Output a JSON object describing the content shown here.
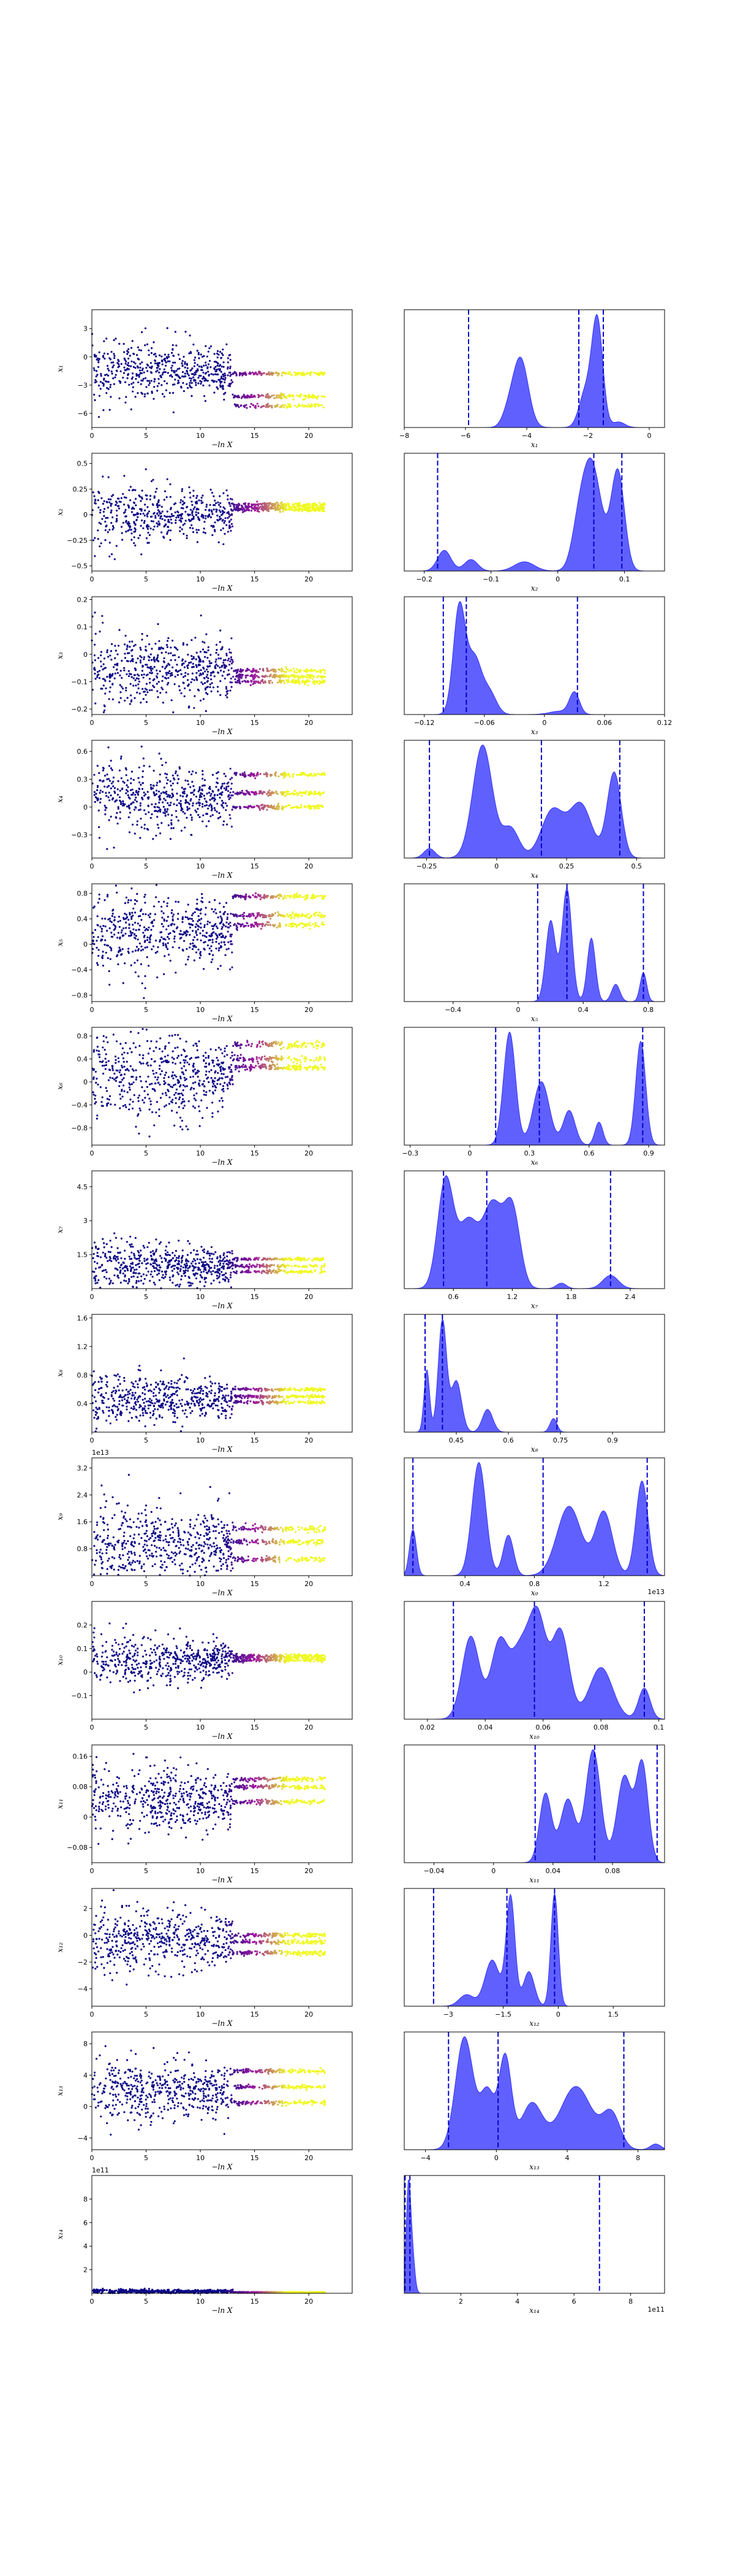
{
  "figure": {
    "colors": {
      "trace_low": "#0d0887",
      "trace_mid": "#9c179e",
      "trace_high": "#f0f921",
      "density_fill": "#3333ff",
      "quantile_line": "#0000cc"
    },
    "quantiles": [
      "16%",
      "50%",
      "84%"
    ]
  },
  "chart_data": [
    {
      "type": "scatter",
      "kind": "trace",
      "param": "x_1",
      "ylabel": "x1",
      "xlabel": "−ln X",
      "xlim": [
        0,
        24
      ],
      "ylim": [
        -7.5,
        5
      ],
      "xticks": [
        0,
        5,
        10,
        15,
        20
      ],
      "yticks": [
        3,
        0,
        -3,
        -6
      ],
      "offset": "",
      "early_center": -1.5,
      "early_spread": 1.8,
      "modes": [
        -1.8,
        -4.2,
        -5.2
      ]
    },
    {
      "type": "area",
      "kind": "density",
      "param": "x_1",
      "xlabel": "x1",
      "xlim": [
        -8,
        0.5
      ],
      "ylim": [
        0,
        1
      ],
      "xticks": [
        -8,
        -6,
        -4,
        -2,
        0
      ],
      "offset": "",
      "quantiles": [
        -5.9,
        -2.3,
        -1.5
      ],
      "peaks": [
        {
          "x": -4.2,
          "h": 0.62,
          "w": 0.25
        },
        {
          "x": -4.6,
          "h": 0.12,
          "w": 0.2
        },
        {
          "x": -1.7,
          "h": 0.98,
          "w": 0.18
        },
        {
          "x": -2.1,
          "h": 0.3,
          "w": 0.2
        },
        {
          "x": -1.0,
          "h": 0.05,
          "w": 0.2
        }
      ]
    },
    {
      "type": "scatter",
      "kind": "trace",
      "param": "x_2",
      "ylabel": "x2",
      "xlabel": "−ln X",
      "xlim": [
        0,
        24
      ],
      "ylim": [
        -0.55,
        0.6
      ],
      "xticks": [
        0,
        5,
        10,
        15,
        20
      ],
      "yticks": [
        0.5,
        0.25,
        0,
        -0.25,
        -0.5
      ],
      "offset": "",
      "early_center": 0.0,
      "early_spread": 0.16,
      "modes": [
        0.07,
        0.1,
        0.05
      ]
    },
    {
      "type": "area",
      "kind": "density",
      "param": "x_2",
      "xlabel": "x2",
      "xlim": [
        -0.23,
        0.16
      ],
      "ylim": [
        0,
        1
      ],
      "xticks": [
        -0.2,
        -0.1,
        0,
        0.1
      ],
      "offset": "",
      "quantiles": [
        -0.18,
        0.054,
        0.096
      ],
      "peaks": [
        {
          "x": -0.17,
          "h": 0.18,
          "w": 0.01
        },
        {
          "x": -0.13,
          "h": 0.1,
          "w": 0.01
        },
        {
          "x": -0.05,
          "h": 0.08,
          "w": 0.015
        },
        {
          "x": 0.05,
          "h": 0.95,
          "w": 0.015
        },
        {
          "x": 0.09,
          "h": 0.86,
          "w": 0.01
        },
        {
          "x": 0.03,
          "h": 0.2,
          "w": 0.01
        }
      ]
    },
    {
      "type": "scatter",
      "kind": "trace",
      "param": "x_3",
      "ylabel": "x3",
      "xlabel": "−ln X",
      "xlim": [
        0,
        24
      ],
      "ylim": [
        -0.22,
        0.21
      ],
      "xticks": [
        0,
        5,
        10,
        15,
        20
      ],
      "yticks": [
        0.2,
        0.1,
        0,
        -0.1,
        -0.2
      ],
      "offset": "",
      "early_center": -0.05,
      "early_spread": 0.07,
      "modes": [
        -0.08,
        -0.1,
        -0.06
      ]
    },
    {
      "type": "area",
      "kind": "density",
      "param": "x_3",
      "xlabel": "x3",
      "xlim": [
        -0.14,
        0.12
      ],
      "ylim": [
        0,
        1
      ],
      "xticks": [
        -0.12,
        -0.06,
        0,
        0.06,
        0.12
      ],
      "offset": "",
      "quantiles": [
        -0.101,
        -0.078,
        0.033
      ],
      "peaks": [
        {
          "x": -0.085,
          "h": 0.98,
          "w": 0.006
        },
        {
          "x": -0.07,
          "h": 0.5,
          "w": 0.007
        },
        {
          "x": -0.055,
          "h": 0.2,
          "w": 0.007
        },
        {
          "x": 0.03,
          "h": 0.2,
          "w": 0.005
        },
        {
          "x": 0.015,
          "h": 0.03,
          "w": 0.01
        }
      ]
    },
    {
      "type": "scatter",
      "kind": "trace",
      "param": "x_4",
      "ylabel": "x4",
      "xlabel": "−ln X",
      "xlim": [
        0,
        24
      ],
      "ylim": [
        -0.55,
        0.72
      ],
      "xticks": [
        0,
        5,
        10,
        15,
        20
      ],
      "yticks": [
        0.6,
        0.3,
        0,
        -0.3
      ],
      "offset": "",
      "early_center": 0.1,
      "early_spread": 0.2,
      "modes": [
        0.35,
        0.15,
        0.0
      ]
    },
    {
      "type": "area",
      "kind": "density",
      "param": "x_4",
      "xlabel": "x4",
      "xlim": [
        -0.33,
        0.6
      ],
      "ylim": [
        0,
        1
      ],
      "xticks": [
        -0.25,
        0,
        0.25,
        0.5
      ],
      "offset": "",
      "quantiles": [
        -0.24,
        0.16,
        0.44
      ],
      "peaks": [
        {
          "x": -0.24,
          "h": 0.08,
          "w": 0.02
        },
        {
          "x": -0.05,
          "h": 0.95,
          "w": 0.035
        },
        {
          "x": 0.05,
          "h": 0.25,
          "w": 0.03
        },
        {
          "x": 0.2,
          "h": 0.4,
          "w": 0.04
        },
        {
          "x": 0.3,
          "h": 0.45,
          "w": 0.04
        },
        {
          "x": 0.42,
          "h": 0.72,
          "w": 0.025
        }
      ]
    },
    {
      "type": "scatter",
      "kind": "trace",
      "param": "x_5",
      "ylabel": "x5",
      "xlabel": "−ln X",
      "xlim": [
        0,
        24
      ],
      "ylim": [
        -0.9,
        0.95
      ],
      "xticks": [
        0,
        5,
        10,
        15,
        20
      ],
      "yticks": [
        0.8,
        0.4,
        0,
        -0.4,
        -0.8
      ],
      "offset": "",
      "early_center": 0.2,
      "early_spread": 0.35,
      "modes": [
        0.75,
        0.45,
        0.3
      ]
    },
    {
      "type": "area",
      "kind": "density",
      "param": "x_5",
      "xlabel": "x5",
      "xlim": [
        -0.7,
        0.9
      ],
      "ylim": [
        0,
        1
      ],
      "xticks": [
        -0.4,
        0,
        0.4,
        0.8
      ],
      "offset": "",
      "quantiles": [
        0.12,
        0.3,
        0.77
      ],
      "peaks": [
        {
          "x": 0.2,
          "h": 0.7,
          "w": 0.03
        },
        {
          "x": 0.3,
          "h": 0.98,
          "w": 0.03
        },
        {
          "x": 0.45,
          "h": 0.55,
          "w": 0.025
        },
        {
          "x": 0.6,
          "h": 0.15,
          "w": 0.025
        },
        {
          "x": 0.77,
          "h": 0.25,
          "w": 0.02
        }
      ]
    },
    {
      "type": "scatter",
      "kind": "trace",
      "param": "x_6",
      "ylabel": "x6",
      "xlabel": "−ln X",
      "xlim": [
        0,
        24
      ],
      "ylim": [
        -1.1,
        0.95
      ],
      "xticks": [
        0,
        5,
        10,
        15,
        20
      ],
      "yticks": [
        0.8,
        0.4,
        0,
        -0.4,
        -0.8
      ],
      "offset": "",
      "early_center": 0.1,
      "early_spread": 0.45,
      "modes": [
        0.65,
        0.4,
        0.25
      ]
    },
    {
      "type": "area",
      "kind": "density",
      "param": "x_6",
      "xlabel": "x6",
      "xlim": [
        -0.33,
        0.98
      ],
      "ylim": [
        0,
        1
      ],
      "xticks": [
        -0.3,
        0,
        0.3,
        0.6,
        0.9
      ],
      "offset": "",
      "quantiles": [
        0.13,
        0.35,
        0.87
      ],
      "peaks": [
        {
          "x": 0.2,
          "h": 0.98,
          "w": 0.03
        },
        {
          "x": 0.36,
          "h": 0.55,
          "w": 0.04
        },
        {
          "x": 0.5,
          "h": 0.3,
          "w": 0.03
        },
        {
          "x": 0.65,
          "h": 0.2,
          "w": 0.02
        },
        {
          "x": 0.86,
          "h": 0.9,
          "w": 0.025
        }
      ]
    },
    {
      "type": "scatter",
      "kind": "trace",
      "param": "x_7",
      "ylabel": "x7",
      "xlabel": "−ln X",
      "xlim": [
        0,
        24
      ],
      "ylim": [
        0,
        5.2
      ],
      "xticks": [
        0,
        5,
        10,
        15,
        20
      ],
      "yticks": [
        4.5,
        3,
        1.5
      ],
      "offset": "",
      "early_center": 1.0,
      "early_spread": 0.6,
      "modes": [
        0.75,
        1.0,
        1.3
      ]
    },
    {
      "type": "area",
      "kind": "density",
      "param": "x_7",
      "xlabel": "x7",
      "xlim": [
        0.1,
        2.75
      ],
      "ylim": [
        0,
        1
      ],
      "xticks": [
        0.6,
        1.2,
        1.8,
        2.4
      ],
      "offset": "",
      "quantiles": [
        0.5,
        0.94,
        2.2
      ],
      "peaks": [
        {
          "x": 0.52,
          "h": 0.98,
          "w": 0.08
        },
        {
          "x": 0.75,
          "h": 0.6,
          "w": 0.1
        },
        {
          "x": 1.0,
          "h": 0.75,
          "w": 0.1
        },
        {
          "x": 1.2,
          "h": 0.7,
          "w": 0.08
        },
        {
          "x": 1.7,
          "h": 0.05,
          "w": 0.05
        },
        {
          "x": 2.2,
          "h": 0.12,
          "w": 0.08
        }
      ]
    },
    {
      "type": "scatter",
      "kind": "trace",
      "param": "x_8",
      "ylabel": "x8",
      "xlabel": "−ln X",
      "xlim": [
        0,
        24
      ],
      "ylim": [
        0,
        1.65
      ],
      "xticks": [
        0,
        5,
        10,
        15,
        20
      ],
      "yticks": [
        1.6,
        1.2,
        0.8,
        0.4
      ],
      "offset": "",
      "early_center": 0.45,
      "early_spread": 0.2,
      "modes": [
        0.42,
        0.5,
        0.6
      ]
    },
    {
      "type": "area",
      "kind": "density",
      "param": "x_8",
      "xlabel": "x8",
      "xlim": [
        0.3,
        1.05
      ],
      "ylim": [
        0,
        1
      ],
      "xticks": [
        0.45,
        0.6,
        0.75,
        0.9
      ],
      "offset": "",
      "quantiles": [
        0.36,
        0.41,
        0.74
      ],
      "peaks": [
        {
          "x": 0.365,
          "h": 0.55,
          "w": 0.008
        },
        {
          "x": 0.41,
          "h": 0.98,
          "w": 0.012
        },
        {
          "x": 0.45,
          "h": 0.45,
          "w": 0.015
        },
        {
          "x": 0.54,
          "h": 0.2,
          "w": 0.015
        },
        {
          "x": 0.73,
          "h": 0.12,
          "w": 0.01
        }
      ]
    },
    {
      "type": "scatter",
      "kind": "trace",
      "param": "x_9",
      "ylabel": "x9",
      "xlabel": "−ln X",
      "xlim": [
        0,
        24
      ],
      "ylim": [
        0,
        3.5
      ],
      "xticks": [
        0,
        5,
        10,
        15,
        20
      ],
      "yticks": [
        3.2,
        2.4,
        1.6,
        0.8
      ],
      "offset": "1e13",
      "early_center": 0.9,
      "early_spread": 0.7,
      "modes": [
        0.5,
        1.0,
        1.4
      ]
    },
    {
      "type": "area",
      "kind": "density",
      "param": "x_9",
      "xlabel": "x9",
      "xlim": [
        0.05,
        1.55
      ],
      "ylim": [
        0,
        1
      ],
      "xticks": [
        0.4,
        0.8,
        1.2
      ],
      "offset": "1e13",
      "quantiles": [
        0.1,
        0.85,
        1.45
      ],
      "peaks": [
        {
          "x": 0.1,
          "h": 0.4,
          "w": 0.02
        },
        {
          "x": 0.48,
          "h": 0.98,
          "w": 0.04
        },
        {
          "x": 0.65,
          "h": 0.35,
          "w": 0.03
        },
        {
          "x": 1.0,
          "h": 0.6,
          "w": 0.07
        },
        {
          "x": 1.2,
          "h": 0.55,
          "w": 0.05
        },
        {
          "x": 1.42,
          "h": 0.82,
          "w": 0.035
        }
      ]
    },
    {
      "type": "scatter",
      "kind": "trace",
      "param": "x_10",
      "ylabel": "x10",
      "xlabel": "−ln X",
      "xlim": [
        0,
        24
      ],
      "ylim": [
        -0.2,
        0.3
      ],
      "xticks": [
        0,
        5,
        10,
        15,
        20
      ],
      "yticks": [
        0.2,
        0.1,
        0,
        -0.1
      ],
      "offset": "",
      "early_center": 0.05,
      "early_spread": 0.06,
      "modes": [
        0.05,
        0.06,
        0.07
      ]
    },
    {
      "type": "area",
      "kind": "density",
      "param": "x_10",
      "xlabel": "x10",
      "xlim": [
        0.012,
        0.102
      ],
      "ylim": [
        0,
        1
      ],
      "xticks": [
        0.02,
        0.04,
        0.06,
        0.08,
        0.1
      ],
      "offset": "",
      "quantiles": [
        0.029,
        0.057,
        0.095
      ],
      "peaks": [
        {
          "x": 0.035,
          "h": 0.8,
          "w": 0.003
        },
        {
          "x": 0.045,
          "h": 0.75,
          "w": 0.003
        },
        {
          "x": 0.052,
          "h": 0.6,
          "w": 0.003
        },
        {
          "x": 0.058,
          "h": 0.98,
          "w": 0.003
        },
        {
          "x": 0.066,
          "h": 0.85,
          "w": 0.003
        },
        {
          "x": 0.08,
          "h": 0.5,
          "w": 0.004
        },
        {
          "x": 0.095,
          "h": 0.3,
          "w": 0.002
        }
      ]
    },
    {
      "type": "scatter",
      "kind": "trace",
      "param": "x_11",
      "ylabel": "x11",
      "xlabel": "−ln X",
      "xlim": [
        0,
        24
      ],
      "ylim": [
        -0.12,
        0.19
      ],
      "xticks": [
        0,
        5,
        10,
        15,
        20
      ],
      "yticks": [
        0.16,
        0.08,
        0,
        -0.08
      ],
      "offset": "",
      "early_center": 0.04,
      "early_spread": 0.05,
      "modes": [
        0.08,
        0.1,
        0.04
      ]
    },
    {
      "type": "area",
      "kind": "density",
      "param": "x_11",
      "xlabel": "x11",
      "xlim": [
        -0.06,
        0.115
      ],
      "ylim": [
        0,
        1
      ],
      "xticks": [
        -0.04,
        0,
        0.04,
        0.08
      ],
      "offset": "",
      "quantiles": [
        0.028,
        0.068,
        0.11
      ],
      "peaks": [
        {
          "x": 0.035,
          "h": 0.6,
          "w": 0.004
        },
        {
          "x": 0.05,
          "h": 0.55,
          "w": 0.005
        },
        {
          "x": 0.067,
          "h": 0.98,
          "w": 0.005
        },
        {
          "x": 0.088,
          "h": 0.75,
          "w": 0.005
        },
        {
          "x": 0.1,
          "h": 0.85,
          "w": 0.004
        }
      ]
    },
    {
      "type": "scatter",
      "kind": "trace",
      "param": "x_12",
      "ylabel": "x12",
      "xlabel": "−ln X",
      "xlim": [
        0,
        24
      ],
      "ylim": [
        -5.3,
        3.5
      ],
      "xticks": [
        0,
        5,
        10,
        15,
        20
      ],
      "yticks": [
        2,
        0,
        -2,
        -4
      ],
      "offset": "",
      "early_center": -0.3,
      "early_spread": 1.4,
      "modes": [
        -0.5,
        -1.3,
        0.0
      ]
    },
    {
      "type": "area",
      "kind": "density",
      "param": "x_12",
      "xlabel": "x12",
      "xlim": [
        -4.2,
        2.9
      ],
      "ylim": [
        0,
        1
      ],
      "xticks": [
        -3,
        -1.5,
        0,
        1.5
      ],
      "offset": "",
      "quantiles": [
        -3.4,
        -1.4,
        -0.1
      ],
      "peaks": [
        {
          "x": -2.5,
          "h": 0.1,
          "w": 0.2
        },
        {
          "x": -1.8,
          "h": 0.4,
          "w": 0.2
        },
        {
          "x": -1.3,
          "h": 0.95,
          "w": 0.12
        },
        {
          "x": -0.8,
          "h": 0.3,
          "w": 0.15
        },
        {
          "x": -0.1,
          "h": 0.98,
          "w": 0.1
        }
      ]
    },
    {
      "type": "scatter",
      "kind": "trace",
      "param": "x_13",
      "ylabel": "x13",
      "xlabel": "−ln X",
      "xlim": [
        0,
        24
      ],
      "ylim": [
        -5.5,
        9.5
      ],
      "xticks": [
        0,
        5,
        10,
        15,
        20
      ],
      "yticks": [
        8,
        4,
        0,
        -4
      ],
      "offset": "",
      "early_center": 2.0,
      "early_spread": 2.2,
      "modes": [
        0.5,
        2.5,
        4.5
      ]
    },
    {
      "type": "area",
      "kind": "density",
      "param": "x_13",
      "xlabel": "x13",
      "xlim": [
        -5.2,
        9.5
      ],
      "ylim": [
        0,
        1
      ],
      "xticks": [
        -4,
        0,
        4,
        8
      ],
      "offset": "",
      "quantiles": [
        -2.7,
        0.1,
        7.2
      ],
      "peaks": [
        {
          "x": -1.8,
          "h": 0.98,
          "w": 0.5
        },
        {
          "x": -0.5,
          "h": 0.5,
          "w": 0.4
        },
        {
          "x": 0.5,
          "h": 0.8,
          "w": 0.35
        },
        {
          "x": 2.0,
          "h": 0.4,
          "w": 0.6
        },
        {
          "x": 4.5,
          "h": 0.55,
          "w": 0.9
        },
        {
          "x": 6.5,
          "h": 0.3,
          "w": 0.5
        },
        {
          "x": 9.0,
          "h": 0.05,
          "w": 0.3
        }
      ]
    },
    {
      "type": "scatter",
      "kind": "trace",
      "param": "x_14",
      "ylabel": "x14",
      "xlabel": "−ln X",
      "xlim": [
        0,
        24
      ],
      "ylim": [
        0,
        10
      ],
      "xticks": [
        0,
        5,
        10,
        15,
        20
      ],
      "yticks": [
        8,
        6,
        4,
        2
      ],
      "offset": "1e11",
      "early_center": 0.15,
      "early_spread": 0.1,
      "modes": [
        0.05,
        0.08,
        0.1
      ]
    },
    {
      "type": "area",
      "kind": "density",
      "param": "x_14",
      "xlabel": "x14",
      "xlim": [
        0,
        9.2
      ],
      "ylim": [
        0,
        1
      ],
      "xticks": [
        2,
        4,
        6,
        8
      ],
      "offset": "1e11",
      "quantiles": [
        0.03,
        0.2,
        6.9
      ],
      "peaks": [
        {
          "x": 0.15,
          "h": 0.98,
          "w": 0.08
        },
        {
          "x": 0.3,
          "h": 0.3,
          "w": 0.08
        }
      ]
    }
  ]
}
